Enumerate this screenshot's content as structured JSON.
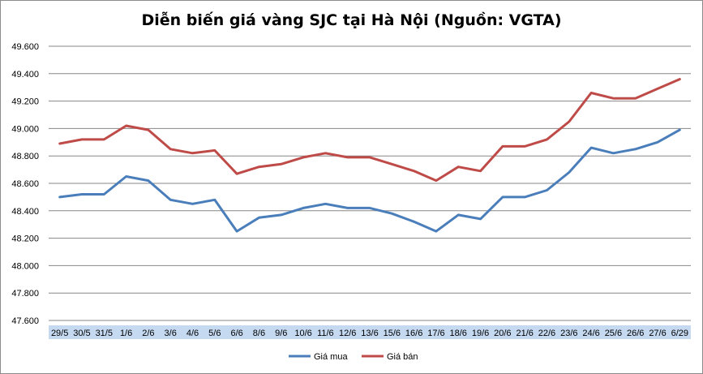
{
  "chart_data": {
    "type": "line",
    "title": "Diễn biến giá vàng SJC tại Hà Nội (Nguồn: VGTA)",
    "categories": [
      "29/5",
      "30/5",
      "31/5",
      "1/6",
      "2/6",
      "3/6",
      "4/6",
      "5/6",
      "6/6",
      "8/6",
      "9/6",
      "10/6",
      "11/6",
      "12/6",
      "13/6",
      "15/6",
      "16/6",
      "17/6",
      "18/6",
      "19/6",
      "20/6",
      "21/6",
      "22/6",
      "23/6",
      "24/6",
      "25/6",
      "26/6",
      "27/6",
      "6/29"
    ],
    "series": [
      {
        "name": "Giá mua",
        "color": "#4a7ebb",
        "values": [
          48500,
          48520,
          48520,
          48650,
          48620,
          48480,
          48450,
          48480,
          48250,
          48350,
          48370,
          48420,
          48450,
          48420,
          48420,
          48380,
          48320,
          48250,
          48370,
          48340,
          48500,
          48500,
          48550,
          48680,
          48860,
          48820,
          48850,
          48900,
          48990
        ]
      },
      {
        "name": "Giá bán",
        "color": "#be4b48",
        "values": [
          48890,
          48920,
          48920,
          49020,
          48990,
          48850,
          48820,
          48840,
          48670,
          48720,
          48740,
          48790,
          48820,
          48790,
          48790,
          48740,
          48690,
          48620,
          48720,
          48690,
          48870,
          48870,
          48920,
          49050,
          49260,
          49220,
          49220,
          49290,
          49360
        ]
      }
    ],
    "yticks": [
      "49.600",
      "49.400",
      "49.200",
      "49.000",
      "48.800",
      "48.600",
      "48.400",
      "48.200",
      "48.000",
      "47.800",
      "47.600"
    ],
    "ylim": [
      47600,
      49600
    ],
    "grid": true,
    "legend": "bottom"
  }
}
